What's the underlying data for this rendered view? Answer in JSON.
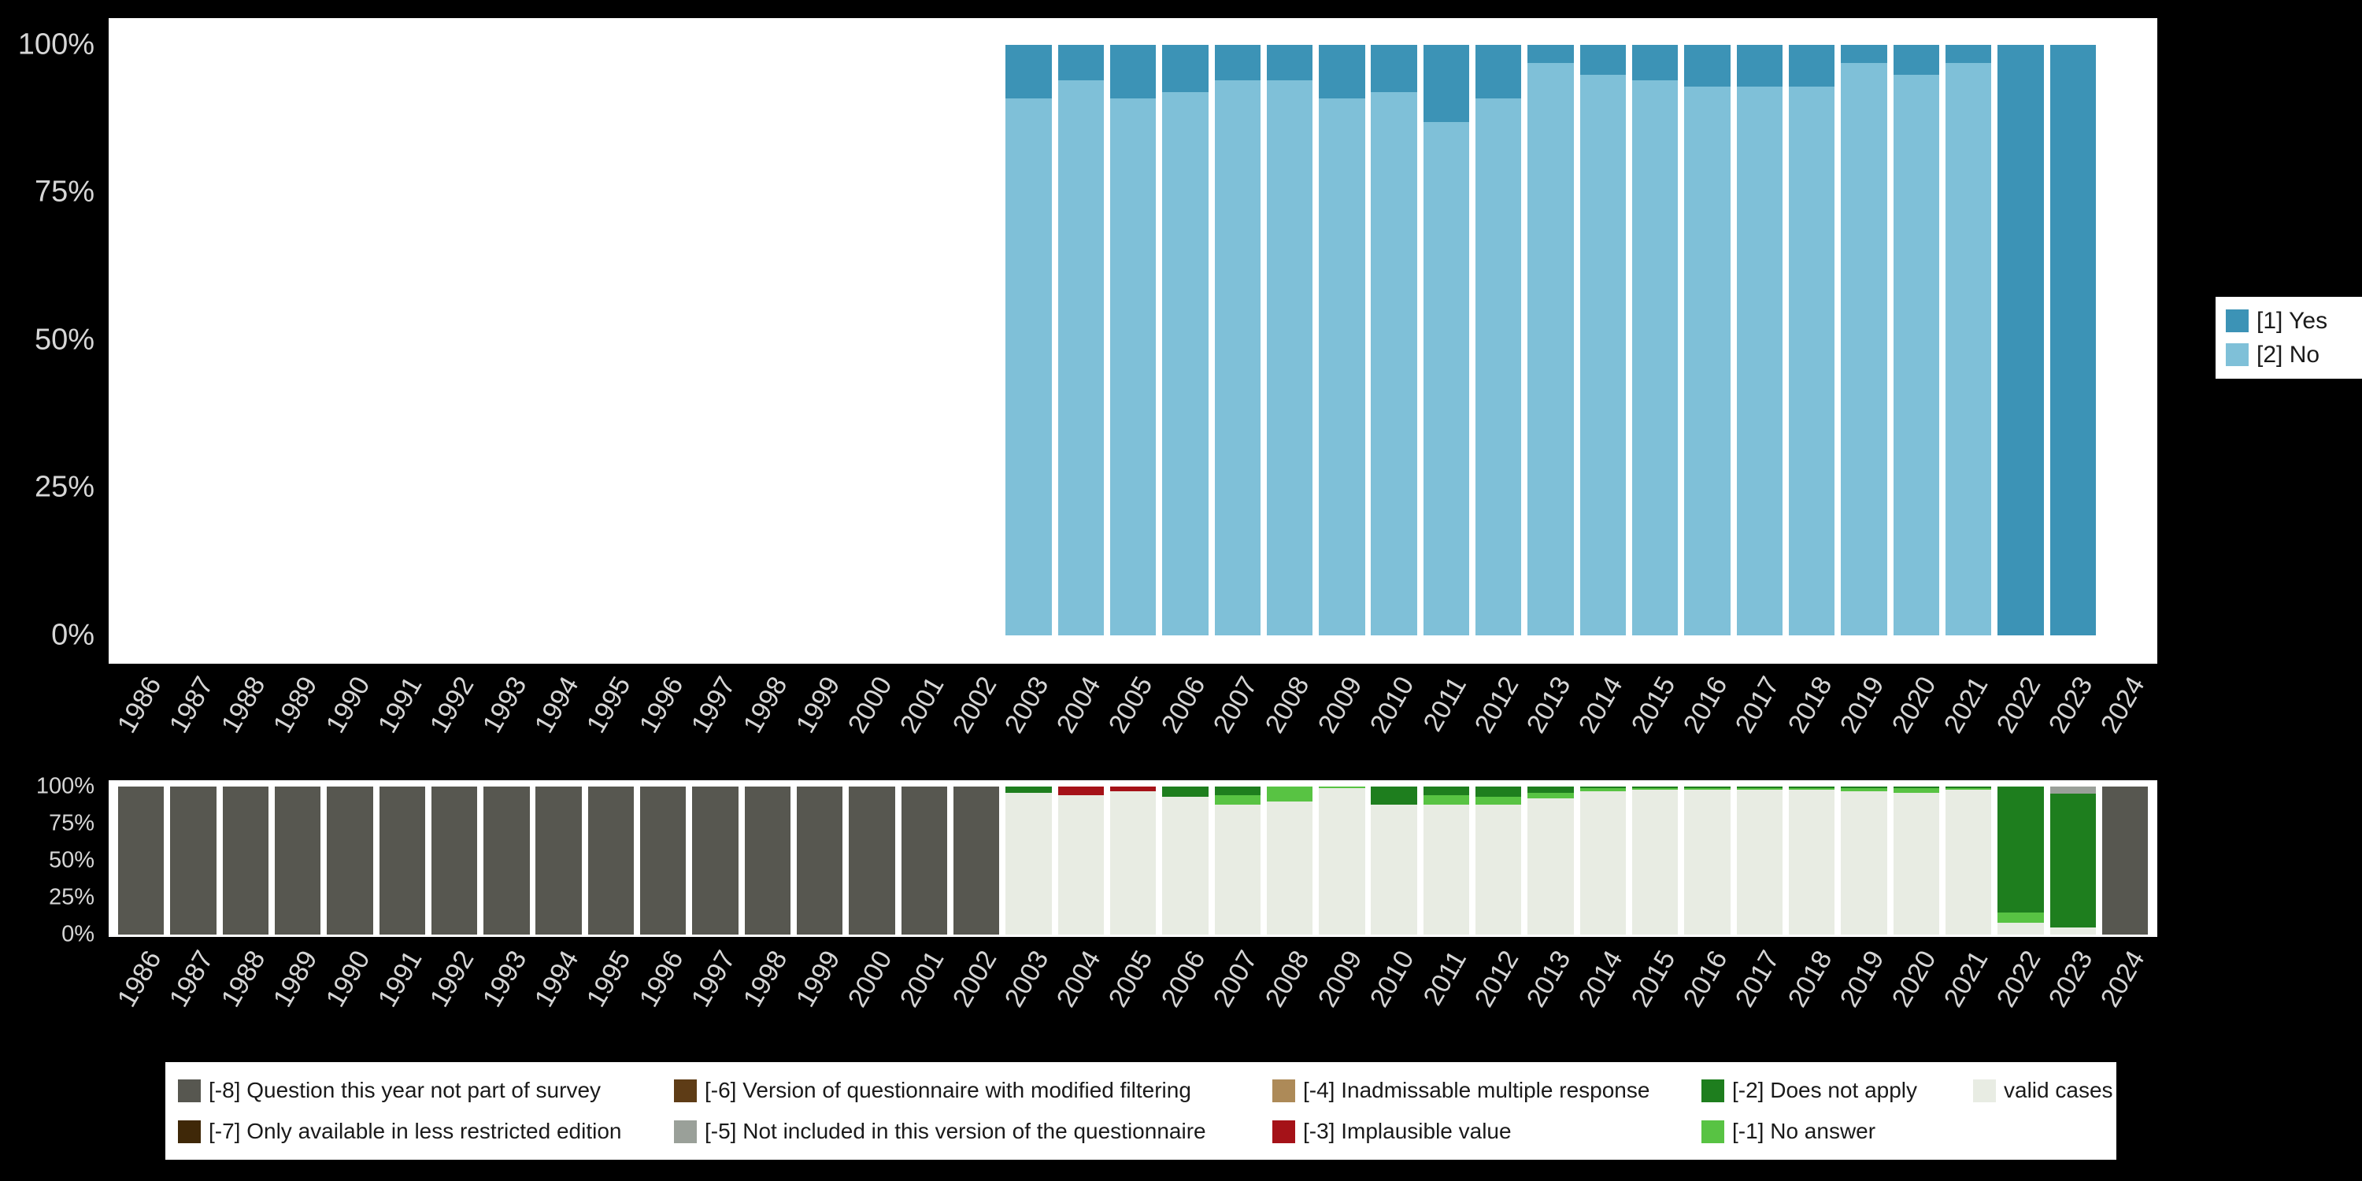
{
  "page": {
    "background": "#000000",
    "panel_background": "#ffffff",
    "axis_text_color": "#d6d6d6",
    "legend_text_color": "#1a1a1a"
  },
  "years": [
    "1986",
    "1987",
    "1988",
    "1989",
    "1990",
    "1991",
    "1992",
    "1993",
    "1994",
    "1995",
    "1996",
    "1997",
    "1998",
    "1999",
    "2000",
    "2001",
    "2002",
    "2003",
    "2004",
    "2005",
    "2006",
    "2007",
    "2008",
    "2009",
    "2010",
    "2011",
    "2012",
    "2013",
    "2014",
    "2015",
    "2016",
    "2017",
    "2018",
    "2019",
    "2020",
    "2021",
    "2022",
    "2023",
    "2024"
  ],
  "y_ticks": [
    "100%",
    "75%",
    "50%",
    "25%",
    "0%"
  ],
  "colors": {
    "yes": "#3c93b6",
    "no": "#7fc0d8",
    "valid": "#e8ece3",
    "m1": "#58c343",
    "m2": "#1e7e1e",
    "m3": "#a51218",
    "m4": "#ad8a58",
    "m5": "#9aa099",
    "m6": "#5e3c16",
    "m7": "#3f2808",
    "m8": "#575750"
  },
  "chart_data": [
    {
      "id": "main",
      "type": "bar",
      "stacked": true,
      "ylim": [
        0,
        100
      ],
      "y_tick_labels": [
        "100%",
        "75%",
        "50%",
        "25%",
        "0%"
      ],
      "x_unit": "year",
      "series": [
        {
          "name": "[2] No",
          "color_key": "no",
          "values": [
            0,
            0,
            0,
            0,
            0,
            0,
            0,
            0,
            0,
            0,
            0,
            0,
            0,
            0,
            0,
            0,
            0,
            91,
            94,
            91,
            92,
            94,
            94,
            91,
            92,
            87,
            91,
            97,
            95,
            94,
            93,
            93,
            93,
            97,
            95,
            97,
            0,
            0,
            0
          ]
        },
        {
          "name": "[1] Yes",
          "color_key": "yes",
          "values": [
            0,
            0,
            0,
            0,
            0,
            0,
            0,
            0,
            0,
            0,
            0,
            0,
            0,
            0,
            0,
            0,
            0,
            9,
            6,
            9,
            8,
            6,
            6,
            9,
            8,
            13,
            9,
            3,
            5,
            6,
            7,
            7,
            7,
            3,
            5,
            3,
            100,
            100,
            0
          ]
        }
      ],
      "legend": {
        "position": "right",
        "items": [
          {
            "label": "[1] Yes",
            "color_key": "yes"
          },
          {
            "label": "[2] No",
            "color_key": "no"
          }
        ]
      }
    },
    {
      "id": "missing-values",
      "type": "bar",
      "stacked": true,
      "ylim": [
        0,
        100
      ],
      "y_tick_labels": [
        "100%",
        "75%",
        "50%",
        "25%",
        "0%"
      ],
      "x_unit": "year",
      "series": [
        {
          "name": "valid cases",
          "color_key": "valid",
          "values": [
            0,
            0,
            0,
            0,
            0,
            0,
            0,
            0,
            0,
            0,
            0,
            0,
            0,
            0,
            0,
            0,
            0,
            96,
            94,
            97,
            93,
            88,
            90,
            99,
            88,
            88,
            88,
            92,
            97,
            98,
            98,
            98,
            98,
            97,
            96,
            98,
            8,
            5,
            0
          ]
        },
        {
          "name": "[-1] No answer",
          "color_key": "m1",
          "values": [
            0,
            0,
            0,
            0,
            0,
            0,
            0,
            0,
            0,
            0,
            0,
            0,
            0,
            0,
            0,
            0,
            0,
            0,
            0,
            0,
            0,
            6,
            10,
            1,
            0,
            6,
            5,
            4,
            2,
            1,
            1,
            1,
            1,
            2,
            3,
            1,
            7,
            0,
            0
          ]
        },
        {
          "name": "[-2] Does not apply",
          "color_key": "m2",
          "values": [
            0,
            0,
            0,
            0,
            0,
            0,
            0,
            0,
            0,
            0,
            0,
            0,
            0,
            0,
            0,
            0,
            0,
            4,
            0,
            0,
            7,
            6,
            0,
            0,
            12,
            6,
            7,
            4,
            1,
            1,
            1,
            1,
            1,
            1,
            1,
            1,
            85,
            90,
            0
          ]
        },
        {
          "name": "[-3] Implausible value",
          "color_key": "m3",
          "values": [
            0,
            0,
            0,
            0,
            0,
            0,
            0,
            0,
            0,
            0,
            0,
            0,
            0,
            0,
            0,
            0,
            0,
            0,
            6,
            3,
            0,
            0,
            0,
            0,
            0,
            0,
            0,
            0,
            0,
            0,
            0,
            0,
            0,
            0,
            0,
            0,
            0,
            0,
            0
          ]
        },
        {
          "name": "[-5] Not included in this version of the questionnaire",
          "color_key": "m5",
          "values": [
            0,
            0,
            0,
            0,
            0,
            0,
            0,
            0,
            0,
            0,
            0,
            0,
            0,
            0,
            0,
            0,
            0,
            0,
            0,
            0,
            0,
            0,
            0,
            0,
            0,
            0,
            0,
            0,
            0,
            0,
            0,
            0,
            0,
            0,
            0,
            0,
            0,
            5,
            0
          ]
        },
        {
          "name": "[-8] Question this year not part of survey",
          "color_key": "m8",
          "values": [
            100,
            100,
            100,
            100,
            100,
            100,
            100,
            100,
            100,
            100,
            100,
            100,
            100,
            100,
            100,
            100,
            100,
            0,
            0,
            0,
            0,
            0,
            0,
            0,
            0,
            0,
            0,
            0,
            0,
            0,
            0,
            0,
            0,
            0,
            0,
            0,
            0,
            0,
            100
          ]
        }
      ],
      "legend": {
        "position": "bottom",
        "items": [
          {
            "label": "[-8] Question this year not part of survey",
            "color_key": "m8"
          },
          {
            "label": "[-6] Version of questionnaire with modified filtering",
            "color_key": "m6"
          },
          {
            "label": "[-4] Inadmissable multiple response",
            "color_key": "m4"
          },
          {
            "label": "[-2] Does not apply",
            "color_key": "m2"
          },
          {
            "label": "valid cases",
            "color_key": "valid"
          },
          {
            "label": "[-7] Only available in less restricted edition",
            "color_key": "m7"
          },
          {
            "label": "[-5] Not included in this version of the questionnaire",
            "color_key": "m5"
          },
          {
            "label": "[-3] Implausible value",
            "color_key": "m3"
          },
          {
            "label": "[-1] No answer",
            "color_key": "m1"
          }
        ]
      }
    }
  ]
}
